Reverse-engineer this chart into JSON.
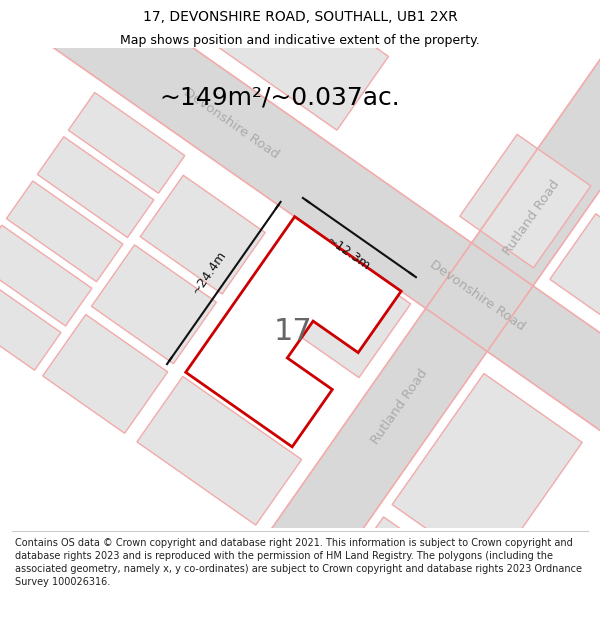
{
  "title_line1": "17, DEVONSHIRE ROAD, SOUTHALL, UB1 2XR",
  "title_line2": "Map shows position and indicative extent of the property.",
  "area_text": "~149m²/~0.037ac.",
  "dim_width": "~12.3m",
  "dim_height": "~24.4m",
  "property_number": "17",
  "footer_text": "Contains OS data © Crown copyright and database right 2021. This information is subject to Crown copyright and database rights 2023 and is reproduced with the permission of HM Land Registry. The polygons (including the associated geometry, namely x, y co-ordinates) are subject to Crown copyright and database rights 2023 Ordnance Survey 100026316.",
  "bg_color": "#ffffff",
  "map_bg": "#f7f7f7",
  "block_fill": "#e4e4e4",
  "road_fill": "#e4e4e4",
  "road_outline": "#f2aaaa",
  "property_fill": "#ffffff",
  "property_edge": "#cc0000",
  "property_edge_lw": 2.0,
  "dim_color": "#111111",
  "text_color": "#000000",
  "label_color": "#aaaaaa",
  "footer_color": "#222222",
  "title_fontsize": 10,
  "subtitle_fontsize": 9,
  "area_fontsize": 18,
  "prop_num_fontsize": 22,
  "road_label_fontsize": 9.5,
  "dim_fontsize": 9,
  "footer_fontsize": 7
}
